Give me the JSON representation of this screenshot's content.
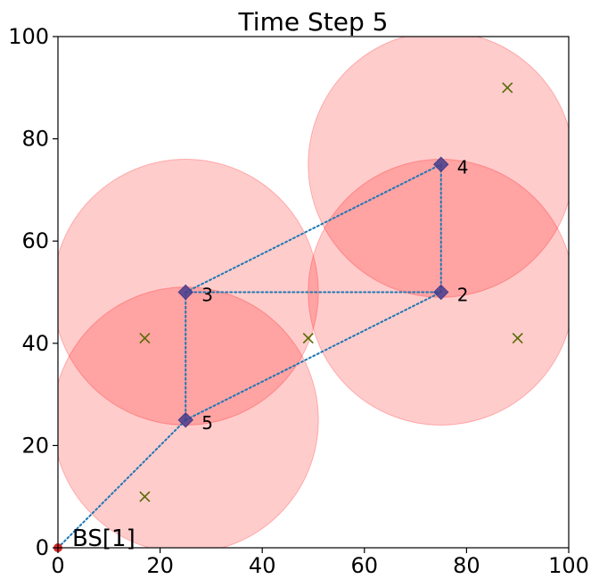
{
  "chart_data": {
    "type": "scatter",
    "title": "Time Step 5",
    "xlabel": "",
    "ylabel": "",
    "xlim": [
      0,
      100
    ],
    "ylim": [
      0,
      100
    ],
    "xticks": [
      0,
      20,
      40,
      60,
      80,
      100
    ],
    "yticks": [
      0,
      20,
      40,
      60,
      80,
      100
    ],
    "grid": false,
    "coverage_radius": 26,
    "base_station": {
      "label": "BS[1]",
      "x": 0,
      "y": 0
    },
    "uav_nodes": [
      {
        "id": "2",
        "x": 75,
        "y": 50
      },
      {
        "id": "3",
        "x": 25,
        "y": 50
      },
      {
        "id": "4",
        "x": 75,
        "y": 75
      },
      {
        "id": "5",
        "x": 25,
        "y": 25
      }
    ],
    "links": [
      [
        "BS[1]",
        "5"
      ],
      [
        "5",
        "3"
      ],
      [
        "5",
        "2"
      ],
      [
        "3",
        "2"
      ],
      [
        "3",
        "4"
      ],
      [
        "2",
        "4"
      ]
    ],
    "users": [
      {
        "x": 17,
        "y": 41
      },
      {
        "x": 17,
        "y": 10
      },
      {
        "x": 49,
        "y": 41
      },
      {
        "x": 88,
        "y": 90
      },
      {
        "x": 90,
        "y": 41
      }
    ],
    "colors": {
      "coverage": "#ff0000",
      "uav": "#483d8b",
      "link": "#1f77b4",
      "user": "#556b00",
      "base_station": "#d62728"
    }
  }
}
